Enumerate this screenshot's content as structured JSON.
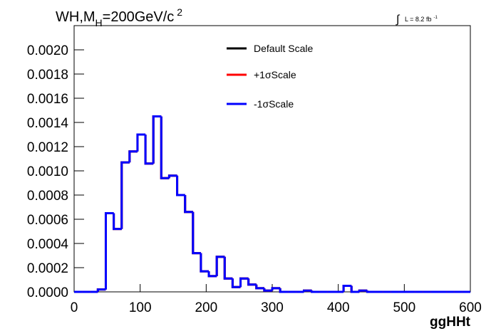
{
  "chart_data": {
    "type": "histogram",
    "title": {
      "main": "WH,M",
      "sub": "H",
      "rest": "=200GeV/c",
      "sup": "2"
    },
    "annotation": {
      "integral": "∫",
      "text": "L = 8.2 fb",
      "sup": "-1"
    },
    "x_label": "ggHHt",
    "bins": [
      0,
      12,
      24,
      36,
      48,
      60,
      72,
      84,
      96,
      108,
      120,
      132,
      144,
      156,
      168,
      180,
      192,
      204,
      216,
      228,
      240,
      252,
      264,
      276,
      288,
      300,
      312,
      324,
      336,
      348,
      360,
      372,
      384,
      396,
      408,
      420,
      432,
      444,
      456,
      468,
      480,
      492,
      504,
      516,
      528,
      540,
      552,
      564,
      576,
      588,
      600
    ],
    "series": [
      {
        "name": "Default Scale",
        "color": "#000000",
        "values": [
          0,
          0,
          0,
          2e-05,
          0.00065,
          0.00052,
          0.00107,
          0.00116,
          0.0013,
          0.00106,
          0.00145,
          0.00094,
          0.00096,
          0.0008,
          0.00066,
          0.00032,
          0.00017,
          0.00013,
          0.00029,
          0.00011,
          4e-05,
          0.00011,
          6e-05,
          3e-05,
          1e-05,
          3e-05,
          0,
          0,
          0,
          1e-05,
          0,
          0,
          0,
          0,
          5e-05,
          0,
          1e-05,
          0,
          0,
          0,
          0,
          0,
          0,
          0,
          0,
          0,
          0,
          0,
          0,
          0
        ]
      },
      {
        "name": "+1σScale",
        "color": "#ff0000",
        "values": [
          0,
          0,
          0,
          2e-05,
          0.00065,
          0.00052,
          0.00107,
          0.00116,
          0.0013,
          0.00106,
          0.00145,
          0.00094,
          0.00096,
          0.0008,
          0.00066,
          0.00032,
          0.00017,
          0.00013,
          0.00029,
          0.00011,
          4e-05,
          0.00011,
          6e-05,
          3e-05,
          1e-05,
          3e-05,
          0,
          0,
          0,
          1e-05,
          0,
          0,
          0,
          0,
          5e-05,
          0,
          1e-05,
          0,
          0,
          0,
          0,
          0,
          0,
          0,
          0,
          0,
          0,
          0,
          0,
          0
        ]
      },
      {
        "name": "-1σScale",
        "color": "#0000ff",
        "values": [
          0,
          0,
          0,
          2e-05,
          0.00065,
          0.00052,
          0.00107,
          0.00116,
          0.0013,
          0.00106,
          0.00145,
          0.00094,
          0.00096,
          0.0008,
          0.00066,
          0.00032,
          0.00017,
          0.00013,
          0.00029,
          0.00011,
          4e-05,
          0.00011,
          6e-05,
          3e-05,
          1e-05,
          3e-05,
          0,
          0,
          0,
          1e-05,
          0,
          0,
          0,
          0,
          5e-05,
          0,
          1e-05,
          0,
          0,
          0,
          0,
          0,
          0,
          0,
          0,
          0,
          0,
          0,
          0,
          0
        ]
      }
    ],
    "xlim": [
      0,
      600
    ],
    "xticks": [
      0,
      100,
      200,
      300,
      400,
      500,
      600
    ],
    "ylim": [
      0,
      0.0022
    ],
    "yticks": [
      {
        "value": 0,
        "label": "0.0000"
      },
      {
        "value": 0.0002,
        "label": "0.0002"
      },
      {
        "value": 0.0004,
        "label": "0.0004"
      },
      {
        "value": 0.0006,
        "label": "0.0006"
      },
      {
        "value": 0.0008,
        "label": "0.0008"
      },
      {
        "value": 0.001,
        "label": "0.0010"
      },
      {
        "value": 0.0012,
        "label": "0.0012"
      },
      {
        "value": 0.0014,
        "label": "0.0014"
      },
      {
        "value": 0.0016,
        "label": "0.0016"
      },
      {
        "value": 0.0018,
        "label": "0.0018"
      },
      {
        "value": 0.002,
        "label": "0.0020"
      }
    ],
    "grid": false
  }
}
